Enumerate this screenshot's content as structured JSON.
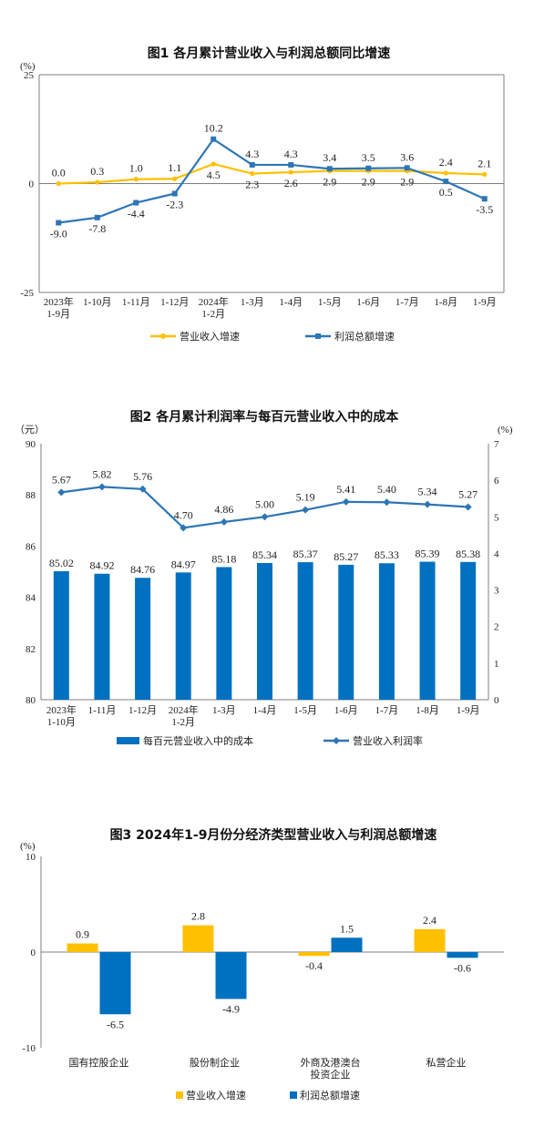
{
  "colors": {
    "orange": "#FFC000",
    "blue": "#2E75B6",
    "bar_blue": "#0070C0",
    "axis": "#7F7F7F"
  },
  "chart_data": [
    {
      "type": "line",
      "title": "图1  各月累计营业收入与利润总额同比增速",
      "unit": "(%)",
      "categories": [
        "2023年 1-9月",
        "1-10月",
        "1-11月",
        "1-12月",
        "2024年 1-2月",
        "1-3月",
        "1-4月",
        "1-5月",
        "1-6月",
        "1-7月",
        "1-8月",
        "1-9月"
      ],
      "ylim": [
        -25,
        25
      ],
      "yticks": [
        "25",
        "0",
        "-25"
      ],
      "series": [
        {
          "name": "营业收入增速",
          "values": [
            0.0,
            0.3,
            1.0,
            1.1,
            4.5,
            2.3,
            2.6,
            2.9,
            2.9,
            2.9,
            2.4,
            2.1
          ],
          "labels": [
            "0.0",
            "0.3",
            "1.0",
            "1.1",
            "4.5",
            "2.3",
            "2.6",
            "2.9",
            "2.9",
            "2.9",
            "2.4",
            "2.1"
          ]
        },
        {
          "name": "利润总额增速",
          "values": [
            -9.0,
            -7.8,
            -4.4,
            -2.3,
            10.2,
            4.3,
            4.3,
            3.4,
            3.5,
            3.6,
            0.5,
            -3.5
          ],
          "labels": [
            "-9.0",
            "-7.8",
            "-4.4",
            "-2.3",
            "10.2",
            "4.3",
            "4.3",
            "3.4",
            "3.5",
            "3.6",
            "0.5",
            "-3.5"
          ]
        }
      ],
      "legend": "bottom"
    },
    {
      "type": "bar+line",
      "title": "图2  各月累计利润率与每百元营业收入中的成本",
      "unit_left": "（元）",
      "unit_right": "(%)",
      "categories": [
        "2023年 1-10月",
        "1-11月",
        "1-12月",
        "2024年 1-2月",
        "1-3月",
        "1-4月",
        "1-5月",
        "1-6月",
        "1-7月",
        "1-8月",
        "1-9月"
      ],
      "ylim_left": [
        80,
        90
      ],
      "yticks_left": [
        "90",
        "88",
        "86",
        "84",
        "82",
        "80"
      ],
      "ylim_right": [
        0,
        7
      ],
      "yticks_right": [
        "7",
        "6",
        "5",
        "4",
        "3",
        "2",
        "1",
        "0"
      ],
      "series": [
        {
          "name": "每百元营业收入中的成本",
          "axis": "left",
          "values": [
            85.02,
            84.92,
            84.76,
            84.97,
            85.18,
            85.34,
            85.37,
            85.27,
            85.33,
            85.39,
            85.38
          ],
          "labels": [
            "85.02",
            "84.92",
            "84.76",
            "84.97",
            "85.18",
            "85.34",
            "85.37",
            "85.27",
            "85.33",
            "85.39",
            "85.38"
          ]
        },
        {
          "name": "营业收入利润率",
          "axis": "right",
          "values": [
            5.67,
            5.82,
            5.76,
            4.7,
            4.86,
            5.0,
            5.19,
            5.41,
            5.4,
            5.34,
            5.27
          ],
          "labels": [
            "5.67",
            "5.82",
            "5.76",
            "4.70",
            "4.86",
            "5.00",
            "5.19",
            "5.41",
            "5.40",
            "5.34",
            "5.27"
          ]
        }
      ],
      "legend": "bottom"
    },
    {
      "type": "bar",
      "title": "图3  2024年1-9月份分经济类型营业收入与利润总额增速",
      "unit": "(%)",
      "categories": [
        "国有控股企业",
        "股份制企业",
        "外商及港澳台 投资企业",
        "私营企业"
      ],
      "ylim": [
        -10,
        10
      ],
      "yticks": [
        "10",
        "0",
        "-10"
      ],
      "series": [
        {
          "name": "营业收入增速",
          "values": [
            0.9,
            2.8,
            -0.4,
            2.4
          ],
          "labels": [
            "0.9",
            "2.8",
            "-0.4",
            "2.4"
          ]
        },
        {
          "name": "利润总额增速",
          "values": [
            -6.5,
            -4.9,
            1.5,
            -0.6
          ],
          "labels": [
            "-6.5",
            "-4.9",
            "1.5",
            "-0.6"
          ]
        }
      ],
      "legend": "bottom"
    }
  ]
}
